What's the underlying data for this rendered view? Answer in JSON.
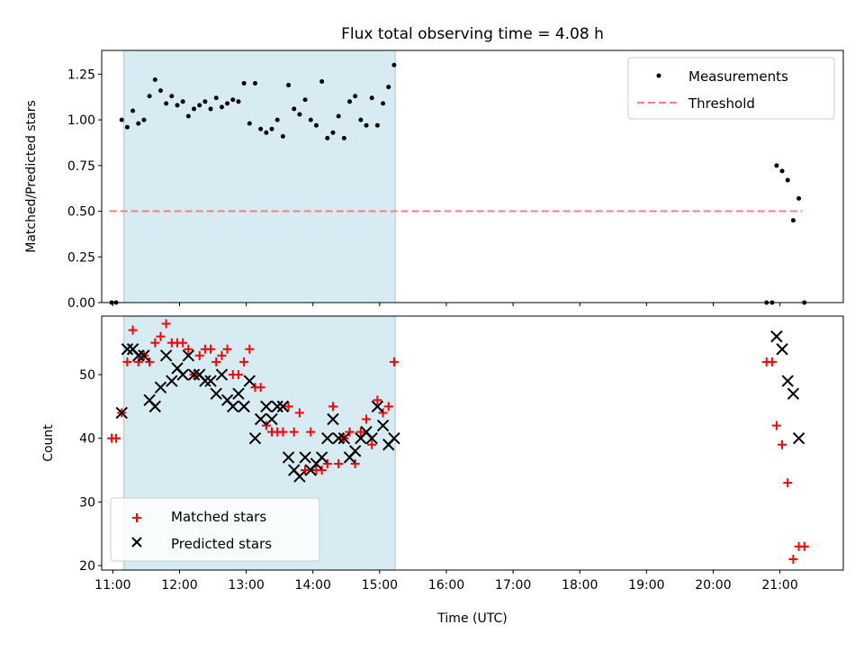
{
  "title": "Flux total observing time = 4.08 h",
  "chart_data": [
    {
      "id": "top",
      "type": "scatter",
      "ylabel": "Matched/Predicted stars",
      "xlim": [
        "10:50",
        "21:57"
      ],
      "ylim": [
        0,
        1.38
      ],
      "yticks": [
        "0.00",
        "0.25",
        "0.50",
        "0.75",
        "1.00",
        "1.25"
      ],
      "shaded_interval": [
        "11:10",
        "15:14"
      ],
      "legend": {
        "placement": "top-right",
        "entries": [
          "Measurements",
          "Threshold"
        ]
      },
      "threshold": {
        "name": "Threshold",
        "value": 0.5,
        "x": [
          "10:57",
          "21:20"
        ],
        "color": "#f08080"
      },
      "series": [
        {
          "name": "Measurements",
          "color": "#000000",
          "points": [
            [
              "10:59",
              0
            ],
            [
              "11:03",
              0
            ],
            [
              "11:08",
              1.0
            ],
            [
              "11:13",
              0.96
            ],
            [
              "11:18",
              1.05
            ],
            [
              "11:23",
              0.98
            ],
            [
              "11:28",
              1.0
            ],
            [
              "11:33",
              1.13
            ],
            [
              "11:38",
              1.22
            ],
            [
              "11:43",
              1.16
            ],
            [
              "11:48",
              1.09
            ],
            [
              "11:53",
              1.13
            ],
            [
              "11:58",
              1.08
            ],
            [
              "12:03",
              1.1
            ],
            [
              "12:08",
              1.02
            ],
            [
              "12:13",
              1.06
            ],
            [
              "12:18",
              1.08
            ],
            [
              "12:23",
              1.1
            ],
            [
              "12:28",
              1.06
            ],
            [
              "12:33",
              1.12
            ],
            [
              "12:38",
              1.07
            ],
            [
              "12:43",
              1.09
            ],
            [
              "12:48",
              1.11
            ],
            [
              "12:53",
              1.1
            ],
            [
              "12:58",
              1.2
            ],
            [
              "13:03",
              0.98
            ],
            [
              "13:08",
              1.2
            ],
            [
              "13:13",
              0.95
            ],
            [
              "13:18",
              0.93
            ],
            [
              "13:23",
              0.95
            ],
            [
              "13:28",
              1.0
            ],
            [
              "13:33",
              0.91
            ],
            [
              "13:38",
              1.19
            ],
            [
              "13:43",
              1.06
            ],
            [
              "13:48",
              1.03
            ],
            [
              "13:53",
              1.11
            ],
            [
              "13:58",
              1.0
            ],
            [
              "14:03",
              0.97
            ],
            [
              "14:08",
              1.21
            ],
            [
              "14:13",
              0.9
            ],
            [
              "14:18",
              0.93
            ],
            [
              "14:23",
              1.02
            ],
            [
              "14:28",
              0.9
            ],
            [
              "14:33",
              1.1
            ],
            [
              "14:38",
              1.13
            ],
            [
              "14:43",
              1.0
            ],
            [
              "14:48",
              0.97
            ],
            [
              "14:53",
              1.12
            ],
            [
              "14:58",
              0.97
            ],
            [
              "15:03",
              1.09
            ],
            [
              "15:08",
              1.18
            ],
            [
              "15:13",
              1.3
            ],
            [
              "20:48",
              0
            ],
            [
              "20:53",
              0
            ],
            [
              "20:57",
              0.75
            ],
            [
              "21:02",
              0.72
            ],
            [
              "21:07",
              0.67
            ],
            [
              "21:12",
              0.45
            ],
            [
              "21:17",
              0.57
            ],
            [
              "21:22",
              0
            ]
          ]
        }
      ]
    },
    {
      "id": "bottom",
      "type": "scatter",
      "xlabel": "Time (UTC)",
      "ylabel": "Count",
      "xlim": [
        "10:50",
        "21:57"
      ],
      "ylim": [
        19.3,
        59.2
      ],
      "yticks": [
        20,
        30,
        40,
        50
      ],
      "xticks": [
        "11:00",
        "12:00",
        "13:00",
        "14:00",
        "15:00",
        "16:00",
        "17:00",
        "18:00",
        "19:00",
        "20:00",
        "21:00"
      ],
      "shaded_interval": [
        "11:10",
        "15:14"
      ],
      "legend": {
        "placement": "bottom-left",
        "entries": [
          "Matched stars",
          "Predicted stars"
        ]
      },
      "series": [
        {
          "name": "Matched stars",
          "marker": "plus",
          "color": "#ff0000",
          "points": [
            [
              "10:59",
              40
            ],
            [
              "11:03",
              40
            ],
            [
              "11:08",
              44
            ],
            [
              "11:13",
              52
            ],
            [
              "11:18",
              57
            ],
            [
              "11:23",
              52
            ],
            [
              "11:28",
              53
            ],
            [
              "11:33",
              52
            ],
            [
              "11:38",
              55
            ],
            [
              "11:43",
              56
            ],
            [
              "11:48",
              58
            ],
            [
              "11:53",
              55
            ],
            [
              "11:58",
              55
            ],
            [
              "12:03",
              55
            ],
            [
              "12:08",
              54
            ],
            [
              "12:13",
              50
            ],
            [
              "12:18",
              53
            ],
            [
              "12:23",
              54
            ],
            [
              "12:28",
              54
            ],
            [
              "12:33",
              52
            ],
            [
              "12:38",
              53
            ],
            [
              "12:43",
              54
            ],
            [
              "12:48",
              50
            ],
            [
              "12:53",
              50
            ],
            [
              "12:58",
              52
            ],
            [
              "13:03",
              54
            ],
            [
              "13:08",
              48
            ],
            [
              "13:13",
              48
            ],
            [
              "13:18",
              42
            ],
            [
              "13:23",
              41
            ],
            [
              "13:28",
              41
            ],
            [
              "13:33",
              41
            ],
            [
              "13:38",
              45
            ],
            [
              "13:43",
              41
            ],
            [
              "13:48",
              44
            ],
            [
              "13:53",
              35
            ],
            [
              "13:58",
              41
            ],
            [
              "14:03",
              35
            ],
            [
              "14:08",
              35
            ],
            [
              "14:13",
              36
            ],
            [
              "14:18",
              45
            ],
            [
              "14:23",
              36
            ],
            [
              "14:28",
              40
            ],
            [
              "14:33",
              41
            ],
            [
              "14:38",
              36
            ],
            [
              "14:43",
              41
            ],
            [
              "14:48",
              43
            ],
            [
              "14:53",
              39
            ],
            [
              "14:58",
              46
            ],
            [
              "15:03",
              44
            ],
            [
              "15:08",
              45
            ],
            [
              "15:13",
              52
            ],
            [
              "20:48",
              52
            ],
            [
              "20:53",
              52
            ],
            [
              "20:57",
              42
            ],
            [
              "21:02",
              39
            ],
            [
              "21:07",
              33
            ],
            [
              "21:12",
              21
            ],
            [
              "21:17",
              23
            ],
            [
              "21:22",
              23
            ]
          ]
        },
        {
          "name": "Predicted stars",
          "marker": "x",
          "color": "#000000",
          "points": [
            [
              "11:08",
              44
            ],
            [
              "11:13",
              54
            ],
            [
              "11:18",
              54
            ],
            [
              "11:23",
              53
            ],
            [
              "11:28",
              53
            ],
            [
              "11:33",
              46
            ],
            [
              "11:38",
              45
            ],
            [
              "11:43",
              48
            ],
            [
              "11:48",
              53
            ],
            [
              "11:53",
              49
            ],
            [
              "11:58",
              51
            ],
            [
              "12:03",
              50
            ],
            [
              "12:08",
              53
            ],
            [
              "12:13",
              50
            ],
            [
              "12:18",
              50
            ],
            [
              "12:23",
              49
            ],
            [
              "12:28",
              49
            ],
            [
              "12:33",
              47
            ],
            [
              "12:38",
              50
            ],
            [
              "12:43",
              46
            ],
            [
              "12:48",
              45
            ],
            [
              "12:53",
              47
            ],
            [
              "12:58",
              45
            ],
            [
              "13:03",
              49
            ],
            [
              "13:08",
              40
            ],
            [
              "13:13",
              43
            ],
            [
              "13:18",
              45
            ],
            [
              "13:23",
              43
            ],
            [
              "13:28",
              45
            ],
            [
              "13:33",
              45
            ],
            [
              "13:38",
              37
            ],
            [
              "13:43",
              35
            ],
            [
              "13:48",
              34
            ],
            [
              "13:53",
              37
            ],
            [
              "13:58",
              35
            ],
            [
              "14:03",
              36
            ],
            [
              "14:08",
              37
            ],
            [
              "14:13",
              40
            ],
            [
              "14:18",
              43
            ],
            [
              "14:23",
              40
            ],
            [
              "14:28",
              40
            ],
            [
              "14:33",
              37
            ],
            [
              "14:38",
              38
            ],
            [
              "14:43",
              40
            ],
            [
              "14:48",
              41
            ],
            [
              "14:53",
              40
            ],
            [
              "14:58",
              45
            ],
            [
              "15:03",
              42
            ],
            [
              "15:08",
              39
            ],
            [
              "15:13",
              40
            ],
            [
              "20:57",
              56
            ],
            [
              "21:02",
              54
            ],
            [
              "21:07",
              49
            ],
            [
              "21:12",
              47
            ],
            [
              "21:17",
              40
            ]
          ]
        }
      ]
    }
  ]
}
